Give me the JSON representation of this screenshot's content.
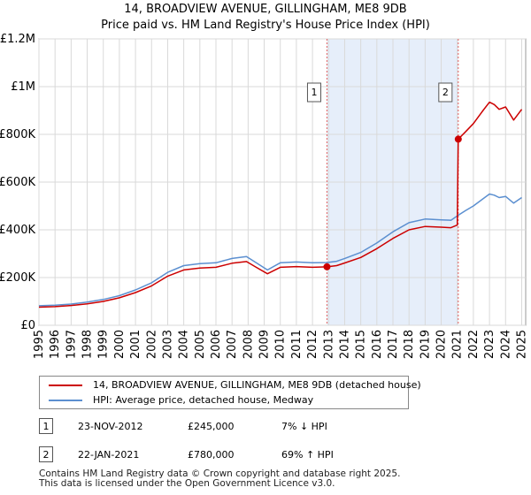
{
  "chart_data": {
    "type": "line",
    "title": "14, BROADVIEW AVENUE, GILLINGHAM, ME8 9DB",
    "subtitle": "Price paid vs. HM Land Registry's House Price Index (HPI)",
    "xlim": [
      1995,
      2025.25
    ],
    "ylim": [
      0,
      1200000
    ],
    "x_ticks": [
      1995,
      1996,
      1997,
      1998,
      1999,
      2000,
      2001,
      2002,
      2003,
      2004,
      2005,
      2006,
      2007,
      2008,
      2009,
      2010,
      2011,
      2012,
      2013,
      2014,
      2015,
      2016,
      2017,
      2018,
      2019,
      2020,
      2021,
      2022,
      2023,
      2024,
      2025
    ],
    "y_ticks": [
      {
        "value": 0,
        "label": "£0"
      },
      {
        "value": 200000,
        "label": "£200K"
      },
      {
        "value": 400000,
        "label": "£400K"
      },
      {
        "value": 600000,
        "label": "£600K"
      },
      {
        "value": 800000,
        "label": "£800K"
      },
      {
        "value": 1000000,
        "label": "£1M"
      },
      {
        "value": 1200000,
        "label": "£1.2M"
      }
    ],
    "shaded_range": [
      2012.9,
      2021.06
    ],
    "series": [
      {
        "name": "HPI: Average price, detached house, Medway",
        "color": "#5b8fd0",
        "points": [
          [
            1995,
            82000
          ],
          [
            1996,
            84000
          ],
          [
            1997,
            89000
          ],
          [
            1998,
            97000
          ],
          [
            1999,
            108000
          ],
          [
            2000,
            124000
          ],
          [
            2001,
            148000
          ],
          [
            2002,
            178000
          ],
          [
            2003,
            222000
          ],
          [
            2004,
            250000
          ],
          [
            2005,
            258000
          ],
          [
            2006,
            262000
          ],
          [
            2007,
            280000
          ],
          [
            2007.9,
            288000
          ],
          [
            2008.5,
            262000
          ],
          [
            2009.2,
            232000
          ],
          [
            2010,
            262000
          ],
          [
            2011,
            265000
          ],
          [
            2012,
            262000
          ],
          [
            2012.9,
            263000
          ],
          [
            2013.5,
            268000
          ],
          [
            2014,
            280000
          ],
          [
            2015,
            305000
          ],
          [
            2016,
            345000
          ],
          [
            2017,
            392000
          ],
          [
            2018,
            430000
          ],
          [
            2019,
            445000
          ],
          [
            2020,
            442000
          ],
          [
            2020.6,
            440000
          ],
          [
            2021.06,
            461000
          ],
          [
            2021.5,
            480000
          ],
          [
            2022,
            500000
          ],
          [
            2022.6,
            530000
          ],
          [
            2023,
            550000
          ],
          [
            2023.3,
            545000
          ],
          [
            2023.6,
            535000
          ],
          [
            2024,
            540000
          ],
          [
            2024.5,
            512000
          ],
          [
            2025,
            535000
          ]
        ]
      },
      {
        "name": "14, BROADVIEW AVENUE, GILLINGHAM, ME8 9DB (detached house)",
        "color": "#cc0000",
        "points": [
          [
            1995,
            76000
          ],
          [
            1996,
            78000
          ],
          [
            1997,
            83000
          ],
          [
            1998,
            90000
          ],
          [
            1999,
            100000
          ],
          [
            2000,
            115000
          ],
          [
            2001,
            137000
          ],
          [
            2002,
            165000
          ],
          [
            2003,
            206000
          ],
          [
            2004,
            232000
          ],
          [
            2005,
            240000
          ],
          [
            2006,
            243000
          ],
          [
            2007,
            260000
          ],
          [
            2007.9,
            267000
          ],
          [
            2008.5,
            243000
          ],
          [
            2009.2,
            216000
          ],
          [
            2010,
            243000
          ],
          [
            2011,
            246000
          ],
          [
            2012,
            243000
          ],
          [
            2012.9,
            245000
          ],
          [
            2013.5,
            250000
          ],
          [
            2014,
            261000
          ],
          [
            2015,
            284000
          ],
          [
            2016,
            321000
          ],
          [
            2017,
            364000
          ],
          [
            2018,
            400000
          ],
          [
            2019,
            414000
          ],
          [
            2020,
            411000
          ],
          [
            2020.6,
            409000
          ],
          [
            2021.0,
            420000
          ],
          [
            2021.06,
            780000
          ],
          [
            2021.5,
            810000
          ],
          [
            2022,
            845000
          ],
          [
            2022.6,
            900000
          ],
          [
            2023,
            935000
          ],
          [
            2023.3,
            925000
          ],
          [
            2023.6,
            905000
          ],
          [
            2024,
            915000
          ],
          [
            2024.5,
            860000
          ],
          [
            2025,
            905000
          ]
        ]
      }
    ],
    "sales": [
      {
        "id": "1",
        "x": 2012.9,
        "price": 245000,
        "date": "23-NOV-2012",
        "price_label": "£245,000",
        "hpi": "7% ↓ HPI"
      },
      {
        "id": "2",
        "x": 2021.06,
        "price": 780000,
        "date": "22-JAN-2021",
        "price_label": "£780,000",
        "hpi": "69% ↑ HPI"
      }
    ]
  },
  "legend": {
    "property_label": "14, BROADVIEW AVENUE, GILLINGHAM, ME8 9DB (detached house)",
    "hpi_label": "HPI: Average price, detached house, Medway",
    "property_color": "#cc0000",
    "hpi_color": "#5b8fd0"
  },
  "transactions": [
    {
      "id": "1",
      "date": "23-NOV-2012",
      "price": "£245,000",
      "hpi": "7% ↓ HPI"
    },
    {
      "id": "2",
      "date": "22-JAN-2021",
      "price": "£780,000",
      "hpi": "69% ↑ HPI"
    }
  ],
  "footer": {
    "line1": "Contains HM Land Registry data © Crown copyright and database right 2025.",
    "line2": "This data is licensed under the Open Government Licence v3.0."
  }
}
